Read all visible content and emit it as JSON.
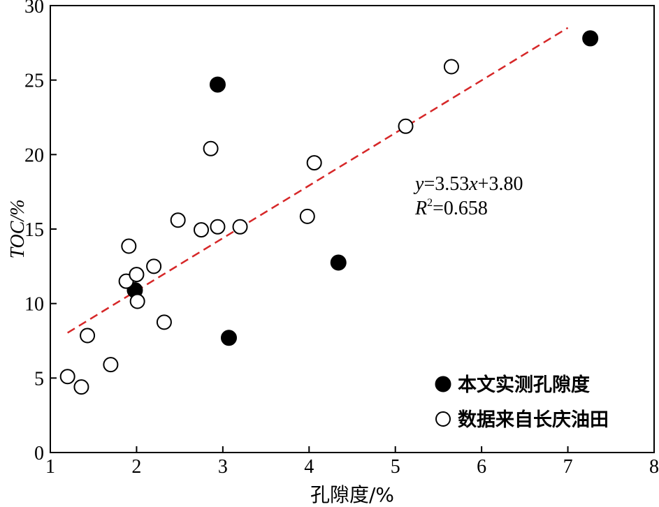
{
  "chart_data": {
    "type": "scatter",
    "xlabel": "孔隙度/%",
    "ylabel": "TOC/%",
    "xlim": [
      1,
      8
    ],
    "ylim": [
      0,
      30
    ],
    "xticks": [
      "1",
      "2",
      "3",
      "4",
      "5",
      "6",
      "7",
      "8"
    ],
    "yticks": [
      "0",
      "5",
      "10",
      "15",
      "20",
      "25",
      "30"
    ],
    "grid": false,
    "legend_position": "bottom-right",
    "series": [
      {
        "name": "本文实测孔隙度",
        "marker": "filled-circle",
        "color": "#000000",
        "points": [
          {
            "x": 1.98,
            "y": 10.9
          },
          {
            "x": 2.94,
            "y": 24.7
          },
          {
            "x": 3.07,
            "y": 7.7
          },
          {
            "x": 4.34,
            "y": 12.75
          },
          {
            "x": 7.26,
            "y": 27.8
          }
        ]
      },
      {
        "name": "数据来自长庆油田",
        "marker": "open-circle",
        "color": "#000000",
        "points": [
          {
            "x": 1.2,
            "y": 5.1
          },
          {
            "x": 1.36,
            "y": 4.4
          },
          {
            "x": 1.43,
            "y": 7.85
          },
          {
            "x": 1.7,
            "y": 5.9
          },
          {
            "x": 1.88,
            "y": 11.5
          },
          {
            "x": 1.91,
            "y": 13.85
          },
          {
            "x": 2.0,
            "y": 11.95
          },
          {
            "x": 2.01,
            "y": 10.15
          },
          {
            "x": 2.2,
            "y": 12.5
          },
          {
            "x": 2.32,
            "y": 8.75
          },
          {
            "x": 2.48,
            "y": 15.6
          },
          {
            "x": 2.75,
            "y": 14.95
          },
          {
            "x": 2.86,
            "y": 20.4
          },
          {
            "x": 2.94,
            "y": 15.15
          },
          {
            "x": 3.2,
            "y": 15.15
          },
          {
            "x": 3.98,
            "y": 15.85
          },
          {
            "x": 4.06,
            "y": 19.45
          },
          {
            "x": 5.12,
            "y": 21.9
          },
          {
            "x": 5.65,
            "y": 25.9
          }
        ]
      }
    ],
    "fit_line": {
      "slope": 3.53,
      "intercept": 3.8,
      "x_range": [
        1.2,
        7.0
      ],
      "color": "#d62728",
      "style": "dashed"
    },
    "annotation": {
      "equation": {
        "y": "y",
        "eq": "=3.53",
        "x": "x",
        "rest": "+3.80"
      },
      "r2": {
        "R": "R",
        "sup": "2",
        "rest": "=0.658"
      }
    }
  }
}
